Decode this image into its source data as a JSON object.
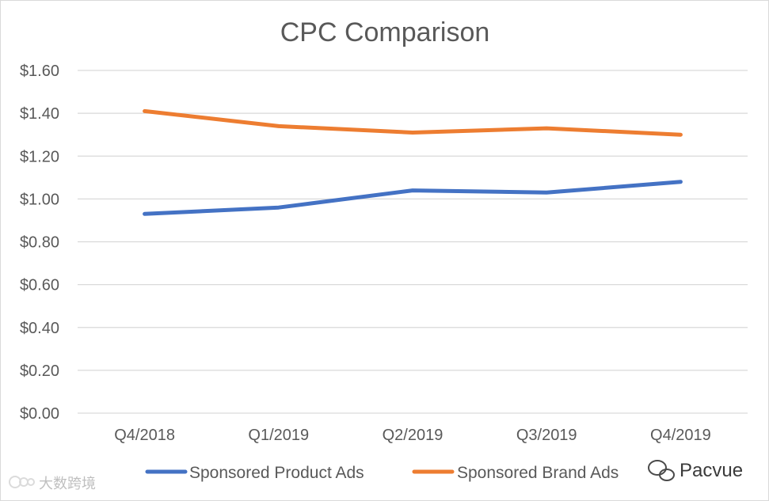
{
  "chart_data": {
    "type": "line",
    "title": "CPC Comparison",
    "xlabel": "",
    "ylabel": "",
    "categories": [
      "Q4/2018",
      "Q1/2019",
      "Q2/2019",
      "Q3/2019",
      "Q4/2019"
    ],
    "ylim": [
      0,
      1.6
    ],
    "yticks": [
      "$0.00",
      "$0.20",
      "$0.40",
      "$0.60",
      "$0.80",
      "$1.00",
      "$1.20",
      "$1.40",
      "$1.60"
    ],
    "ytick_values": [
      0,
      0.2,
      0.4,
      0.6,
      0.8,
      1.0,
      1.2,
      1.4,
      1.6
    ],
    "grid": true,
    "legend_position": "bottom",
    "series": [
      {
        "name": "Sponsored Product Ads",
        "color": "#4472c4",
        "values": [
          0.93,
          0.96,
          1.04,
          1.03,
          1.08
        ]
      },
      {
        "name": "Sponsored Brand Ads",
        "color": "#ed7d31",
        "values": [
          1.41,
          1.34,
          1.31,
          1.33,
          1.3
        ]
      }
    ]
  },
  "watermark": {
    "left_text": "大数跨境",
    "brand_text": "Pacvue",
    "wechat_icon": "wechat-icon"
  }
}
